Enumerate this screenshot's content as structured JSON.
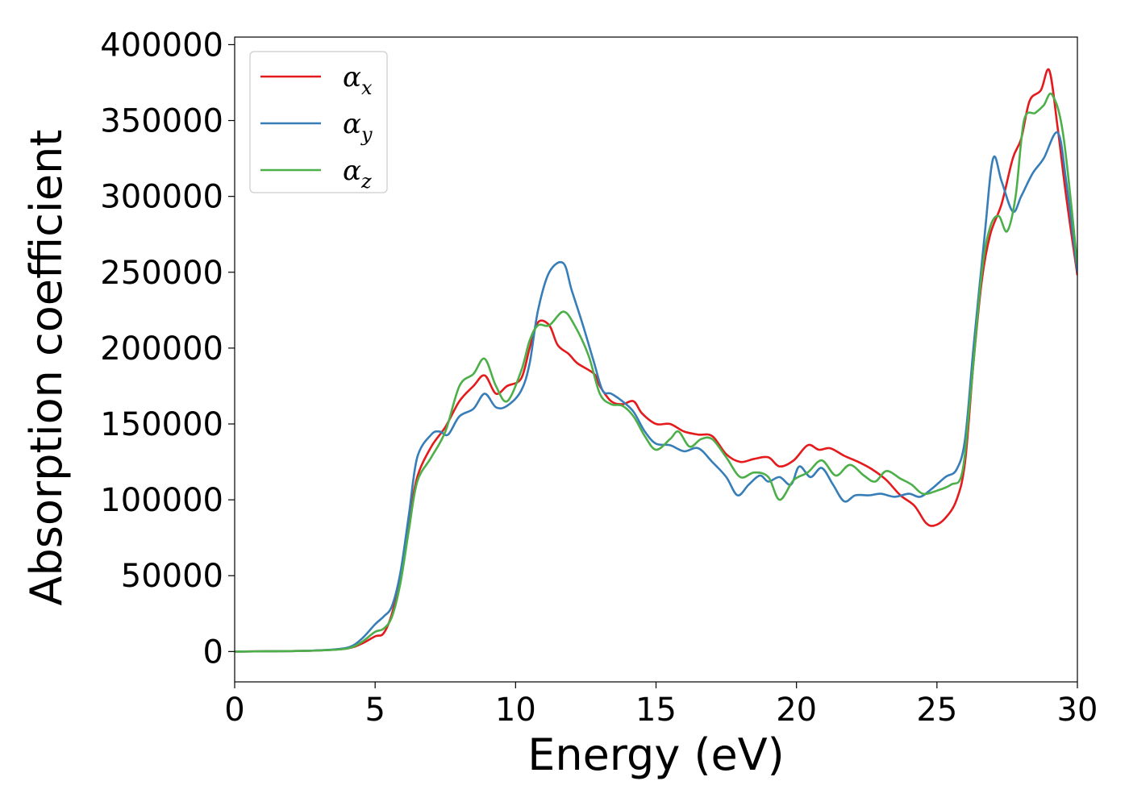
{
  "chart_data": {
    "type": "line",
    "title": "",
    "xlabel": "Energy (eV)",
    "ylabel": "Absorption coefficient",
    "xlim": [
      0,
      30
    ],
    "ylim": [
      -20000,
      405000
    ],
    "xticks": [
      "0",
      "5",
      "10",
      "15",
      "20",
      "25",
      "30"
    ],
    "yticks": [
      "0",
      "50000",
      "100000",
      "150000",
      "200000",
      "250000",
      "300000",
      "350000",
      "400000"
    ],
    "grid": false,
    "legend": {
      "placement": "top-left",
      "entries": [
        {
          "symbol": "α",
          "sub": "x"
        },
        {
          "symbol": "α",
          "sub": "y"
        },
        {
          "symbol": "α",
          "sub": "z"
        }
      ]
    },
    "colors": [
      "#e41a1c",
      "#377eb8",
      "#4daf4a"
    ],
    "series": [
      {
        "points": [
          [
            0,
            0
          ],
          [
            2,
            300
          ],
          [
            3,
            700
          ],
          [
            4,
            2000
          ],
          [
            4.5,
            5000
          ],
          [
            5,
            10000
          ],
          [
            5.3,
            12000
          ],
          [
            5.6,
            25000
          ],
          [
            5.9,
            50000
          ],
          [
            6.2,
            85000
          ],
          [
            6.5,
            115000
          ],
          [
            7,
            135000
          ],
          [
            7.5,
            148000
          ],
          [
            8,
            165000
          ],
          [
            8.5,
            175000
          ],
          [
            8.9,
            182000
          ],
          [
            9.3,
            170000
          ],
          [
            9.7,
            175000
          ],
          [
            10.2,
            180000
          ],
          [
            10.5,
            200000
          ],
          [
            10.8,
            217000
          ],
          [
            11.2,
            215000
          ],
          [
            11.5,
            202000
          ],
          [
            11.9,
            196000
          ],
          [
            12.2,
            190000
          ],
          [
            12.8,
            183000
          ],
          [
            13,
            175000
          ],
          [
            13.4,
            165000
          ],
          [
            13.8,
            163000
          ],
          [
            14.2,
            165000
          ],
          [
            14.5,
            157000
          ],
          [
            15,
            150000
          ],
          [
            15.5,
            150000
          ],
          [
            16,
            145000
          ],
          [
            16.5,
            143000
          ],
          [
            17,
            142000
          ],
          [
            17.5,
            130000
          ],
          [
            18,
            125000
          ],
          [
            18.5,
            127000
          ],
          [
            19,
            128000
          ],
          [
            19.4,
            122000
          ],
          [
            19.9,
            126000
          ],
          [
            20.4,
            136000
          ],
          [
            20.8,
            133000
          ],
          [
            21.2,
            134000
          ],
          [
            21.7,
            129000
          ],
          [
            22.2,
            125000
          ],
          [
            22.7,
            120000
          ],
          [
            23.2,
            113000
          ],
          [
            23.7,
            103000
          ],
          [
            24.2,
            96000
          ],
          [
            24.6,
            85000
          ],
          [
            24.9,
            83000
          ],
          [
            25.3,
            88000
          ],
          [
            25.7,
            100000
          ],
          [
            26,
            125000
          ],
          [
            26.3,
            190000
          ],
          [
            26.6,
            245000
          ],
          [
            26.9,
            275000
          ],
          [
            27.3,
            295000
          ],
          [
            27.7,
            325000
          ],
          [
            28,
            338000
          ],
          [
            28.3,
            363000
          ],
          [
            28.7,
            370000
          ],
          [
            29,
            383000
          ],
          [
            29.3,
            345000
          ],
          [
            29.6,
            300000
          ],
          [
            30,
            248000
          ]
        ]
      },
      {
        "points": [
          [
            0,
            0
          ],
          [
            2,
            300
          ],
          [
            3,
            800
          ],
          [
            4,
            2500
          ],
          [
            4.5,
            8000
          ],
          [
            5,
            18000
          ],
          [
            5.3,
            23000
          ],
          [
            5.6,
            30000
          ],
          [
            5.9,
            52000
          ],
          [
            6.2,
            90000
          ],
          [
            6.5,
            128000
          ],
          [
            7,
            143000
          ],
          [
            7.3,
            145000
          ],
          [
            7.6,
            143000
          ],
          [
            8,
            155000
          ],
          [
            8.5,
            160000
          ],
          [
            8.9,
            170000
          ],
          [
            9.3,
            161000
          ],
          [
            9.7,
            162000
          ],
          [
            10.2,
            172000
          ],
          [
            10.5,
            190000
          ],
          [
            10.8,
            225000
          ],
          [
            11.2,
            250000
          ],
          [
            11.7,
            256000
          ],
          [
            12,
            238000
          ],
          [
            12.4,
            215000
          ],
          [
            12.8,
            190000
          ],
          [
            13.1,
            172000
          ],
          [
            13.4,
            170000
          ],
          [
            13.8,
            165000
          ],
          [
            14.2,
            158000
          ],
          [
            14.6,
            145000
          ],
          [
            15,
            137000
          ],
          [
            15.5,
            136000
          ],
          [
            16,
            132000
          ],
          [
            16.5,
            134000
          ],
          [
            17,
            125000
          ],
          [
            17.5,
            115000
          ],
          [
            17.9,
            103000
          ],
          [
            18.3,
            110000
          ],
          [
            18.7,
            116000
          ],
          [
            19,
            112000
          ],
          [
            19.4,
            115000
          ],
          [
            19.8,
            110000
          ],
          [
            20.1,
            122000
          ],
          [
            20.5,
            115000
          ],
          [
            20.9,
            121000
          ],
          [
            21.3,
            110000
          ],
          [
            21.7,
            99000
          ],
          [
            22.1,
            103000
          ],
          [
            22.6,
            103000
          ],
          [
            23,
            104000
          ],
          [
            23.5,
            102000
          ],
          [
            24,
            104000
          ],
          [
            24.4,
            102000
          ],
          [
            24.8,
            107000
          ],
          [
            25.3,
            115000
          ],
          [
            25.7,
            120000
          ],
          [
            26,
            140000
          ],
          [
            26.3,
            200000
          ],
          [
            26.7,
            275000
          ],
          [
            27,
            325000
          ],
          [
            27.3,
            310000
          ],
          [
            27.7,
            290000
          ],
          [
            28,
            300000
          ],
          [
            28.4,
            315000
          ],
          [
            28.8,
            325000
          ],
          [
            29.3,
            342000
          ],
          [
            29.6,
            310000
          ],
          [
            30,
            250000
          ]
        ]
      },
      {
        "points": [
          [
            0,
            0
          ],
          [
            2,
            300
          ],
          [
            3,
            700
          ],
          [
            4,
            2000
          ],
          [
            4.5,
            6000
          ],
          [
            5,
            13000
          ],
          [
            5.3,
            15000
          ],
          [
            5.6,
            23000
          ],
          [
            5.9,
            45000
          ],
          [
            6.2,
            80000
          ],
          [
            6.5,
            112000
          ],
          [
            7,
            128000
          ],
          [
            7.5,
            145000
          ],
          [
            8,
            175000
          ],
          [
            8.5,
            183000
          ],
          [
            8.9,
            193000
          ],
          [
            9.3,
            175000
          ],
          [
            9.7,
            165000
          ],
          [
            10.2,
            185000
          ],
          [
            10.5,
            205000
          ],
          [
            10.8,
            215000
          ],
          [
            11.2,
            215000
          ],
          [
            11.7,
            224000
          ],
          [
            12.1,
            215000
          ],
          [
            12.6,
            195000
          ],
          [
            13,
            170000
          ],
          [
            13.4,
            163000
          ],
          [
            13.8,
            162000
          ],
          [
            14.2,
            155000
          ],
          [
            14.6,
            142000
          ],
          [
            15,
            133000
          ],
          [
            15.5,
            140000
          ],
          [
            15.8,
            145000
          ],
          [
            16.2,
            135000
          ],
          [
            16.6,
            140000
          ],
          [
            17,
            140000
          ],
          [
            17.5,
            128000
          ],
          [
            18,
            115000
          ],
          [
            18.5,
            118000
          ],
          [
            19,
            115000
          ],
          [
            19.4,
            100000
          ],
          [
            19.9,
            113000
          ],
          [
            20.4,
            118000
          ],
          [
            20.9,
            126000
          ],
          [
            21.4,
            116000
          ],
          [
            21.9,
            123000
          ],
          [
            22.4,
            116000
          ],
          [
            22.8,
            112000
          ],
          [
            23.2,
            119000
          ],
          [
            23.7,
            114000
          ],
          [
            24.1,
            110000
          ],
          [
            24.5,
            104000
          ],
          [
            25,
            106000
          ],
          [
            25.5,
            110000
          ],
          [
            25.9,
            118000
          ],
          [
            26.2,
            170000
          ],
          [
            26.6,
            250000
          ],
          [
            26.9,
            280000
          ],
          [
            27.2,
            287000
          ],
          [
            27.5,
            277000
          ],
          [
            27.8,
            300000
          ],
          [
            28.1,
            350000
          ],
          [
            28.5,
            355000
          ],
          [
            28.8,
            360000
          ],
          [
            29.1,
            367000
          ],
          [
            29.5,
            340000
          ],
          [
            30,
            255000
          ]
        ]
      }
    ]
  }
}
